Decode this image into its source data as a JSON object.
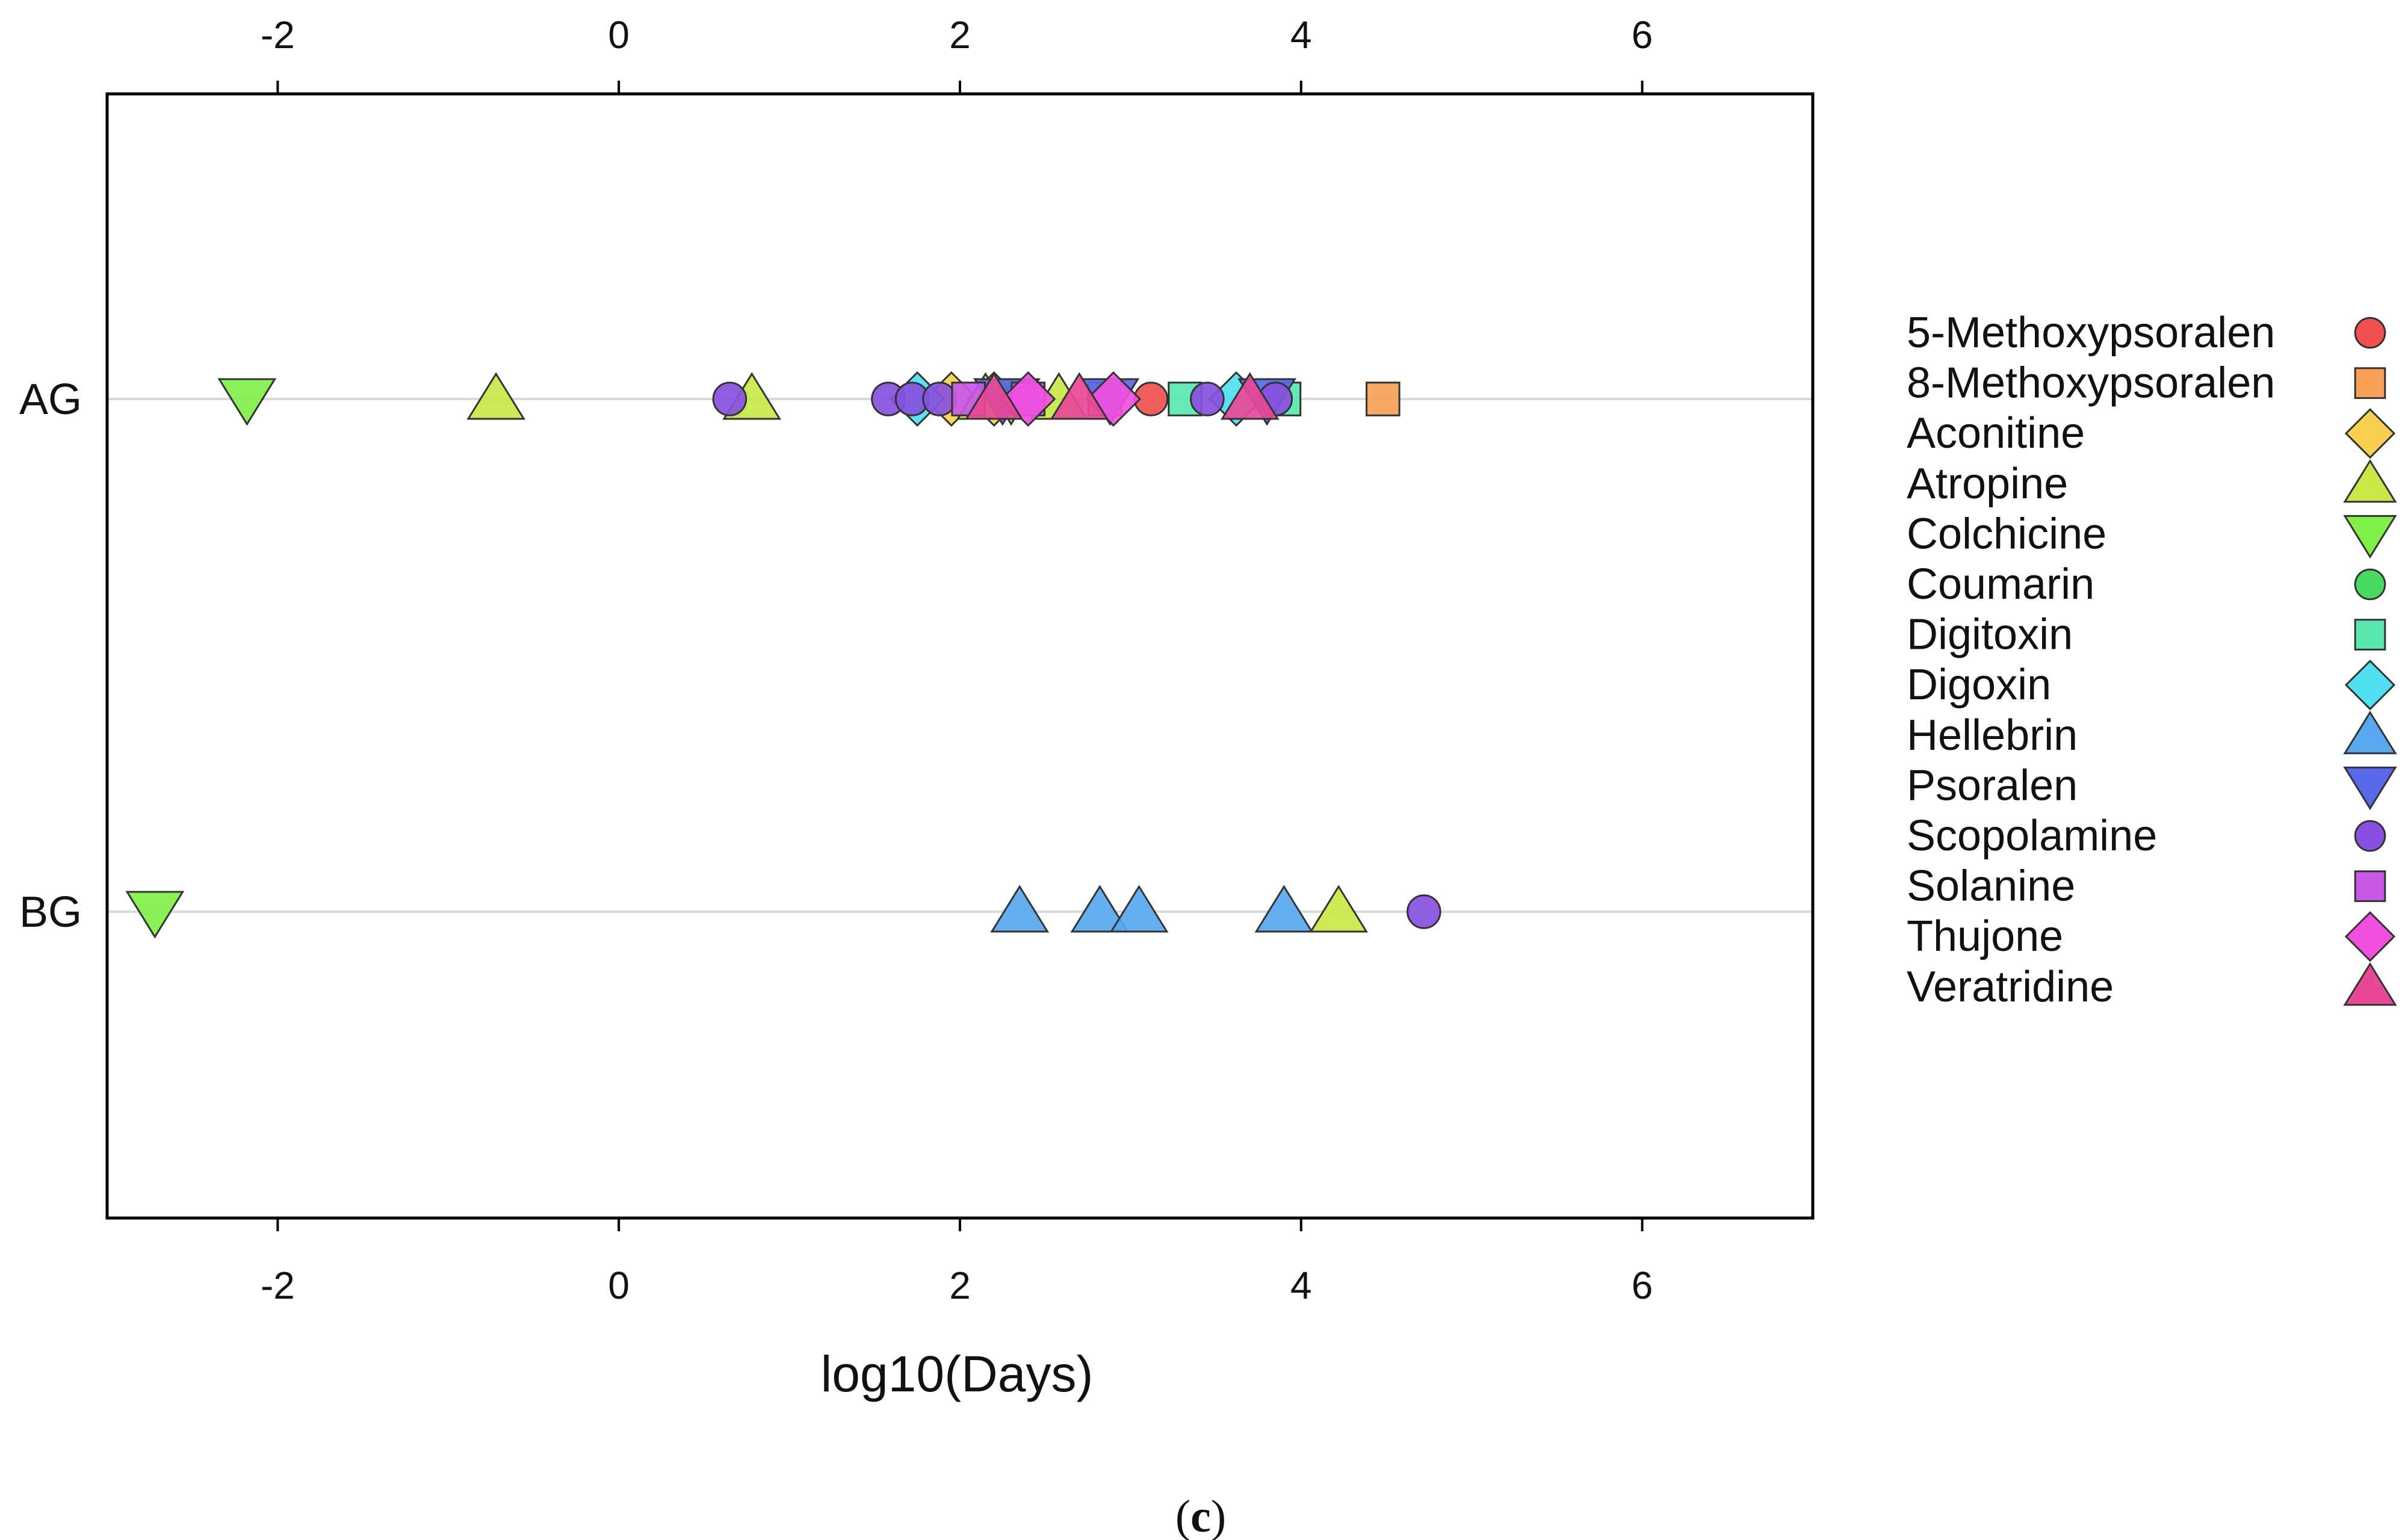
{
  "chart_data": {
    "type": "scatter",
    "title": "",
    "xlabel": "log10(Days)",
    "ylabel": "",
    "xlim": [
      -3,
      7
    ],
    "x_ticks": [
      -2,
      0,
      2,
      4,
      6
    ],
    "x_tick_labels": [
      "-2",
      "0",
      "2",
      "4",
      "6"
    ],
    "categories": [
      "AG",
      "BG"
    ],
    "grid": "horizontal lines at each category",
    "legend_position": "right",
    "caption": {
      "open": "(",
      "letter": "c",
      "close": ")"
    },
    "series": [
      {
        "name": "5-Methoxypsoralen",
        "marker": "circle",
        "color": "#f05050",
        "points": [
          {
            "category": "AG",
            "x": 3.12
          }
        ]
      },
      {
        "name": "8-Methoxypsoralen",
        "marker": "square",
        "color": "#f8a058",
        "points": [
          {
            "category": "AG",
            "x": 2.85
          },
          {
            "category": "AG",
            "x": 4.48
          }
        ]
      },
      {
        "name": "Aconitine",
        "marker": "diamond",
        "color": "#f8d050",
        "points": [
          {
            "category": "AG",
            "x": 1.95
          },
          {
            "category": "AG",
            "x": 2.2
          }
        ]
      },
      {
        "name": "Atropine",
        "marker": "triangle-up",
        "color": "#c8e848",
        "points": [
          {
            "category": "AG",
            "x": -0.72
          },
          {
            "category": "AG",
            "x": 0.78
          },
          {
            "category": "AG",
            "x": 2.15
          },
          {
            "category": "AG",
            "x": 2.58
          },
          {
            "category": "BG",
            "x": 4.22
          }
        ]
      },
      {
        "name": "Colchicine",
        "marker": "triangle-down",
        "color": "#80f048",
        "points": [
          {
            "category": "AG",
            "x": -2.18
          },
          {
            "category": "BG",
            "x": -2.72
          },
          {
            "category": "AG",
            "x": 2.3
          }
        ]
      },
      {
        "name": "Coumarin",
        "marker": "circle",
        "color": "#48d860",
        "points": [
          {
            "category": "AG",
            "x": 2.35
          }
        ]
      },
      {
        "name": "Digitoxin",
        "marker": "square",
        "color": "#58e8b0",
        "points": [
          {
            "category": "AG",
            "x": 3.32
          },
          {
            "category": "AG",
            "x": 3.9
          }
        ]
      },
      {
        "name": "Digoxin",
        "marker": "diamond",
        "color": "#50e0f0",
        "points": [
          {
            "category": "AG",
            "x": 1.75
          },
          {
            "category": "AG",
            "x": 3.62
          }
        ]
      },
      {
        "name": "Hellebrin",
        "marker": "triangle-up",
        "color": "#58a8f0",
        "points": [
          {
            "category": "BG",
            "x": 2.35
          },
          {
            "category": "BG",
            "x": 2.82
          },
          {
            "category": "BG",
            "x": 3.05
          },
          {
            "category": "BG",
            "x": 3.9
          }
        ]
      },
      {
        "name": "Psoralen",
        "marker": "triangle-down",
        "color": "#5868e8",
        "points": [
          {
            "category": "AG",
            "x": 2.25
          },
          {
            "category": "AG",
            "x": 2.88
          },
          {
            "category": "AG",
            "x": 3.8
          }
        ]
      },
      {
        "name": "Scopolamine",
        "marker": "circle",
        "color": "#8850e0",
        "points": [
          {
            "category": "AG",
            "x": 0.65
          },
          {
            "category": "AG",
            "x": 1.58
          },
          {
            "category": "AG",
            "x": 1.72
          },
          {
            "category": "AG",
            "x": 1.88
          },
          {
            "category": "AG",
            "x": 3.45
          },
          {
            "category": "AG",
            "x": 3.85
          },
          {
            "category": "BG",
            "x": 4.72
          }
        ]
      },
      {
        "name": "Solanine",
        "marker": "square",
        "color": "#c858e8",
        "points": [
          {
            "category": "AG",
            "x": 2.05
          },
          {
            "category": "AG",
            "x": 2.4
          }
        ]
      },
      {
        "name": "Thujone",
        "marker": "diamond",
        "color": "#f050e0",
        "points": [
          {
            "category": "AG",
            "x": 2.4
          },
          {
            "category": "AG",
            "x": 2.9
          }
        ]
      },
      {
        "name": "Veratridine",
        "marker": "triangle-up",
        "color": "#e84898",
        "points": [
          {
            "category": "AG",
            "x": 2.2
          },
          {
            "category": "AG",
            "x": 2.7
          },
          {
            "category": "AG",
            "x": 3.7
          }
        ]
      }
    ]
  }
}
